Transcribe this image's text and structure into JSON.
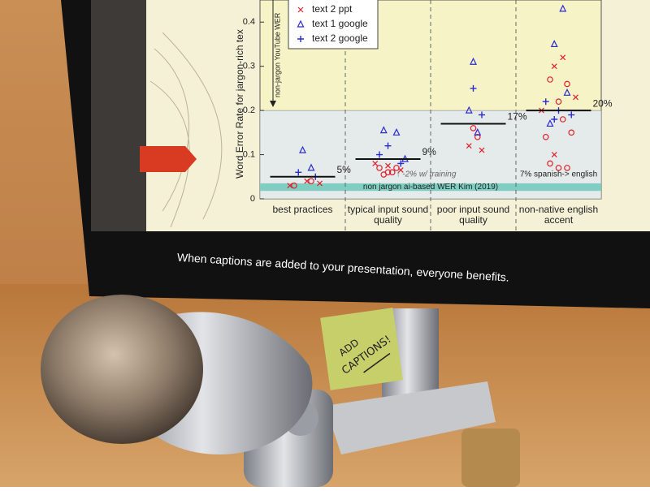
{
  "chart_data": {
    "type": "scatter",
    "y_label": "Word Error Rate for jargon-rich tex",
    "reference_arrow_label": "non-jargon YouTube WER",
    "categories": [
      "best practices",
      "typical input sound quality",
      "poor input sound quality",
      "non-native english accent"
    ],
    "xlim": [
      -0.5,
      3.5
    ],
    "ylim": [
      0,
      0.45
    ],
    "yticks": [
      0,
      0.1,
      0.2,
      0.3,
      0.4
    ],
    "highlight_below": 0.2,
    "reference_band": [
      0.018,
      0.035
    ],
    "reference_band_label": "non jargon ai-based WER Kim (2019)",
    "means": [
      0.05,
      0.09,
      0.17,
      0.2
    ],
    "value_labels": [
      "5%",
      "9%",
      "17%",
      "20%"
    ],
    "annotations": [
      "↑ -2% w/ training",
      "7% spanish-> english"
    ],
    "series": [
      {
        "marker": "o",
        "color": "#e0202a",
        "x": [
          -0.1,
          0.1,
          0.9,
          1.0,
          1.1,
          0.95,
          1.05,
          2.0,
          2.05,
          2.9,
          3.1,
          3.0,
          2.85,
          3.15,
          2.9,
          3.0,
          3.1,
          3.05
        ],
        "values": [
          0.03,
          0.04,
          0.07,
          0.06,
          0.07,
          0.055,
          0.06,
          0.16,
          0.14,
          0.27,
          0.26,
          0.22,
          0.14,
          0.15,
          0.08,
          0.07,
          0.07,
          0.18
        ]
      },
      {
        "name": "text 2 ppt",
        "marker": "x",
        "color": "#e0202a",
        "x": [
          -0.15,
          0.05,
          0.2,
          0.85,
          1.0,
          1.15,
          1.95,
          2.1,
          3.05,
          2.95,
          2.95,
          3.2,
          2.8
        ],
        "values": [
          0.03,
          0.04,
          0.035,
          0.08,
          0.075,
          0.065,
          0.12,
          0.11,
          0.32,
          0.3,
          0.1,
          0.23,
          0.2
        ]
      },
      {
        "name": "text 1 google",
        "marker": "^",
        "color": "#2a2ad0",
        "x": [
          0.0,
          0.1,
          0.95,
          1.1,
          1.2,
          2.0,
          1.95,
          2.05,
          3.05,
          2.95,
          3.1,
          2.9
        ],
        "values": [
          0.11,
          0.07,
          0.155,
          0.15,
          0.09,
          0.31,
          0.2,
          0.15,
          0.43,
          0.35,
          0.24,
          0.17
        ]
      },
      {
        "name": "text 2 google",
        "marker": "+",
        "color": "#2a2ad0",
        "x": [
          -0.05,
          0.15,
          1.0,
          0.9,
          1.15,
          2.0,
          2.1,
          2.85,
          3.0,
          3.15,
          2.95
        ],
        "values": [
          0.06,
          0.05,
          0.12,
          0.1,
          0.08,
          0.25,
          0.19,
          0.22,
          0.2,
          0.19,
          0.18
        ]
      }
    ]
  },
  "caption": "When captions are added to your presentation, everyone benefits.",
  "sticky_note": {
    "line1": "ADD",
    "line2": "CAPTIONS!"
  }
}
